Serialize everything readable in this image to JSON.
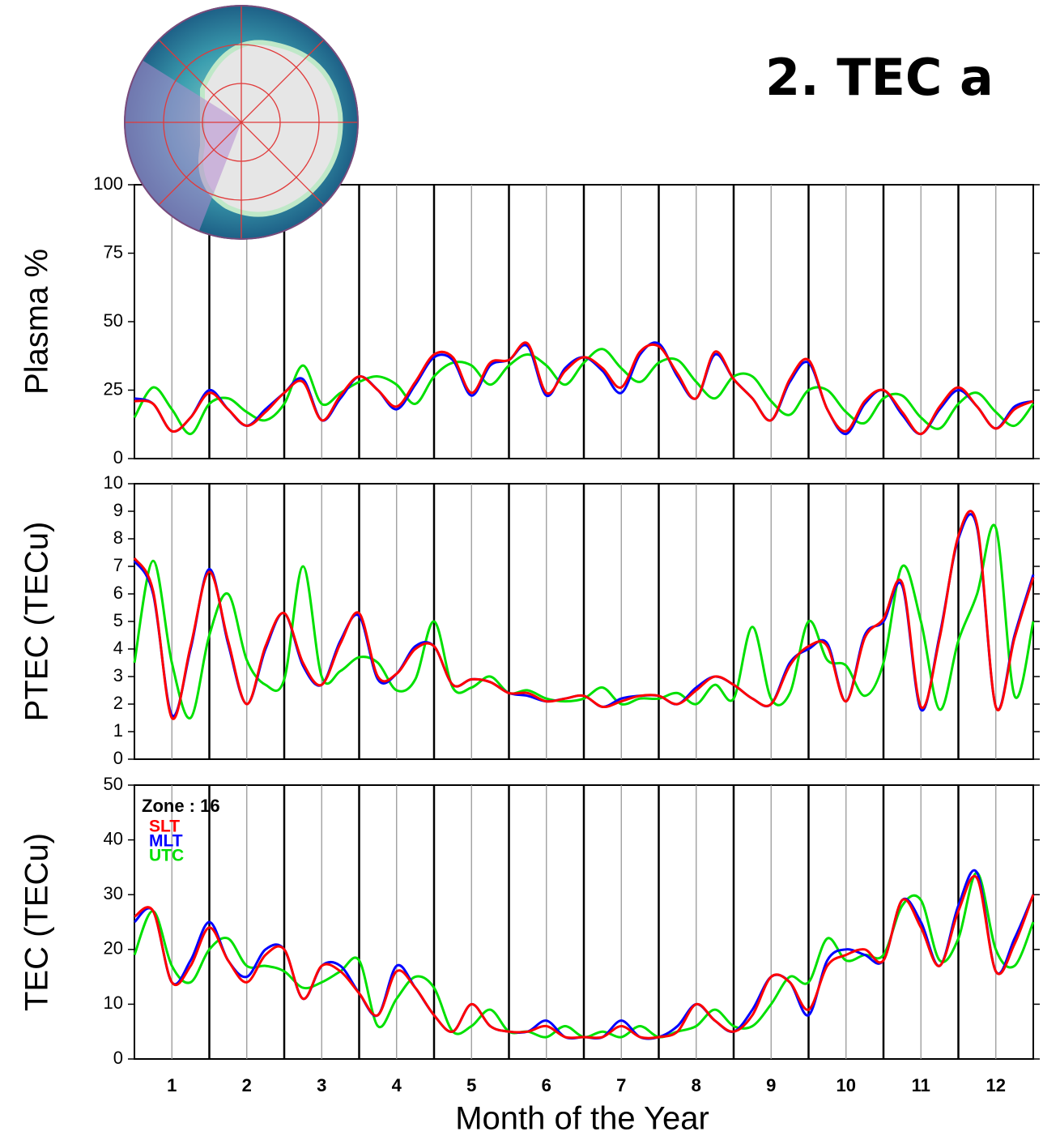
{
  "title": "2. TEC a",
  "chart_data": [
    {
      "type": "line",
      "ylabel": "Plasma %",
      "x": [
        0.5,
        0.75,
        1,
        1.25,
        1.5,
        1.75,
        2,
        2.25,
        2.5,
        2.75,
        3,
        3.25,
        3.5,
        3.75,
        4,
        4.25,
        4.5,
        4.75,
        5,
        5.25,
        5.5,
        5.75,
        6,
        6.25,
        6.5,
        6.75,
        7,
        7.25,
        7.5,
        7.75,
        8,
        8.25,
        8.5,
        8.75,
        9,
        9.25,
        9.5,
        9.75,
        10,
        10.25,
        10.5,
        10.75,
        11,
        11.25,
        11.5,
        11.75,
        12,
        12.25,
        12.5
      ],
      "xlim": [
        0.5,
        12.5
      ],
      "xticks": [
        1,
        2,
        3,
        4,
        5,
        6,
        7,
        8,
        9,
        10,
        11,
        12
      ],
      "ylim": [
        0,
        100
      ],
      "yticks": [
        0,
        25,
        50,
        75,
        100
      ],
      "series": [
        {
          "name": "SLT",
          "color": "#ff0000",
          "values": [
            21,
            20,
            10,
            15,
            24,
            18,
            12,
            17,
            24,
            28,
            14,
            23,
            30,
            25,
            19,
            28,
            38,
            37,
            24,
            35,
            36,
            42,
            24,
            32,
            37,
            33,
            26,
            39,
            41,
            31,
            22,
            39,
            29,
            22,
            14,
            29,
            36,
            18,
            10,
            21,
            25,
            17,
            9,
            19,
            26,
            19,
            11,
            18,
            21
          ]
        },
        {
          "name": "MLT",
          "color": "#0000ff",
          "values": [
            22,
            20,
            10,
            15,
            25,
            18,
            12,
            18,
            24,
            29,
            14,
            22,
            30,
            25,
            18,
            27,
            37,
            36,
            23,
            34,
            36,
            41,
            23,
            33,
            37,
            32,
            24,
            38,
            42,
            30,
            22,
            38,
            29,
            22,
            14,
            28,
            35,
            18,
            9,
            20,
            25,
            16,
            9,
            18,
            25,
            19,
            11,
            19,
            21
          ]
        },
        {
          "name": "UTC",
          "color": "#00e000",
          "values": [
            15,
            26,
            18,
            9,
            20,
            22,
            17,
            14,
            20,
            34,
            20,
            24,
            28,
            30,
            27,
            20,
            30,
            35,
            34,
            27,
            34,
            38,
            34,
            27,
            35,
            40,
            33,
            28,
            35,
            36,
            28,
            22,
            30,
            30,
            21,
            16,
            25,
            25,
            17,
            13,
            22,
            23,
            15,
            11,
            20,
            24,
            17,
            12,
            20
          ]
        }
      ]
    },
    {
      "type": "line",
      "ylabel": "PTEC (TECu)",
      "x": [
        0.5,
        0.75,
        1,
        1.25,
        1.5,
        1.75,
        2,
        2.25,
        2.5,
        2.75,
        3,
        3.25,
        3.5,
        3.75,
        4,
        4.25,
        4.5,
        4.75,
        5,
        5.25,
        5.5,
        5.75,
        6,
        6.25,
        6.5,
        6.75,
        7,
        7.25,
        7.5,
        7.75,
        8,
        8.25,
        8.5,
        8.75,
        9,
        9.25,
        9.5,
        9.75,
        10,
        10.25,
        10.5,
        10.75,
        11,
        11.25,
        11.5,
        11.75,
        12,
        12.25,
        12.5
      ],
      "xlim": [
        0.5,
        12.5
      ],
      "xticks": [
        1,
        2,
        3,
        4,
        5,
        6,
        7,
        8,
        9,
        10,
        11,
        12
      ],
      "ylim": [
        0,
        10
      ],
      "yticks": [
        0,
        1,
        2,
        3,
        4,
        5,
        6,
        7,
        8,
        9,
        10
      ],
      "series": [
        {
          "name": "SLT",
          "color": "#ff0000",
          "values": [
            7.3,
            6.1,
            1.5,
            4.1,
            6.8,
            4.3,
            2.0,
            4.1,
            5.3,
            3.5,
            2.7,
            4.2,
            5.3,
            3.0,
            3.1,
            4.0,
            4.1,
            2.7,
            2.9,
            2.8,
            2.4,
            2.4,
            2.1,
            2.2,
            2.3,
            1.9,
            2.1,
            2.3,
            2.3,
            2.0,
            2.5,
            3.0,
            2.7,
            2.2,
            2.0,
            3.4,
            4.1,
            4.1,
            2.1,
            4.4,
            5.1,
            6.4,
            1.9,
            4.4,
            8.1,
            8.5,
            1.9,
            4.4,
            6.6
          ]
        },
        {
          "name": "MLT",
          "color": "#0000ff",
          "values": [
            7.2,
            6.0,
            1.6,
            4.0,
            6.9,
            4.2,
            2.0,
            4.0,
            5.3,
            3.4,
            2.7,
            4.3,
            5.2,
            2.9,
            3.1,
            4.1,
            4.1,
            2.7,
            2.9,
            2.8,
            2.4,
            2.3,
            2.1,
            2.2,
            2.3,
            1.9,
            2.2,
            2.3,
            2.3,
            2.0,
            2.6,
            3.0,
            2.7,
            2.2,
            2.0,
            3.5,
            4.0,
            4.2,
            2.1,
            4.5,
            5.0,
            6.3,
            1.8,
            4.5,
            8.0,
            8.4,
            1.9,
            4.5,
            6.7
          ]
        },
        {
          "name": "UTC",
          "color": "#00e000",
          "values": [
            3.5,
            7.2,
            3.5,
            1.5,
            4.5,
            6.0,
            3.6,
            2.7,
            2.9,
            7.0,
            3.0,
            3.2,
            3.7,
            3.5,
            2.5,
            2.9,
            5.0,
            2.6,
            2.6,
            3.0,
            2.4,
            2.5,
            2.2,
            2.1,
            2.2,
            2.6,
            2.0,
            2.2,
            2.2,
            2.4,
            2.0,
            2.7,
            2.2,
            4.8,
            2.2,
            2.4,
            5.0,
            3.6,
            3.4,
            2.3,
            3.5,
            7.0,
            5.0,
            1.8,
            4.3,
            6.0,
            8.4,
            2.3,
            5.0
          ]
        }
      ]
    },
    {
      "type": "line",
      "ylabel": "TEC (TECu)",
      "xlabel": "Month of the Year",
      "legend_title": "Zone : 16",
      "x": [
        0.5,
        0.75,
        1,
        1.25,
        1.5,
        1.75,
        2,
        2.25,
        2.5,
        2.75,
        3,
        3.25,
        3.5,
        3.75,
        4,
        4.25,
        4.5,
        4.75,
        5,
        5.25,
        5.5,
        5.75,
        6,
        6.25,
        6.5,
        6.75,
        7,
        7.25,
        7.5,
        7.75,
        8,
        8.25,
        8.5,
        8.75,
        9,
        9.25,
        9.5,
        9.75,
        10,
        10.25,
        10.5,
        10.75,
        11,
        11.25,
        11.5,
        11.75,
        12,
        12.25,
        12.5
      ],
      "xlim": [
        0.5,
        12.5
      ],
      "xticks": [
        1,
        2,
        3,
        4,
        5,
        6,
        7,
        8,
        9,
        10,
        11,
        12
      ],
      "ylim": [
        0,
        50
      ],
      "yticks": [
        0,
        10,
        20,
        30,
        40,
        50
      ],
      "series": [
        {
          "name": "SLT",
          "color": "#ff0000",
          "values": [
            26,
            27,
            14,
            17,
            24,
            18,
            14,
            19,
            20,
            11,
            17,
            16,
            12,
            8,
            16,
            13,
            8,
            5,
            10,
            6,
            5,
            5,
            6,
            4,
            4,
            4,
            6,
            4,
            4,
            5,
            10,
            7,
            5,
            8,
            15,
            14,
            9,
            17,
            19,
            20,
            18,
            29,
            24,
            17,
            27,
            33,
            16,
            21,
            30
          ]
        },
        {
          "name": "MLT",
          "color": "#0000ff",
          "values": [
            25,
            27,
            14,
            18,
            25,
            18,
            15,
            20,
            20,
            11,
            17,
            17,
            12,
            8,
            17,
            13,
            8,
            5,
            10,
            6,
            5,
            5,
            7,
            4,
            4,
            4,
            7,
            4,
            4,
            6,
            10,
            7,
            5,
            9,
            15,
            14,
            8,
            18,
            20,
            19,
            18,
            29,
            25,
            17,
            28,
            34,
            16,
            22,
            30
          ]
        },
        {
          "name": "UTC",
          "color": "#00e000",
          "values": [
            19,
            27,
            17,
            14,
            20,
            22,
            17,
            17,
            16,
            13,
            14,
            16,
            18,
            6,
            11,
            15,
            13,
            5,
            6,
            9,
            5,
            5,
            4,
            6,
            4,
            5,
            4,
            6,
            4,
            5,
            6,
            9,
            6,
            6,
            10,
            15,
            14,
            22,
            18,
            19,
            19,
            28,
            29,
            18,
            22,
            34,
            20,
            17,
            25
          ]
        }
      ]
    }
  ]
}
